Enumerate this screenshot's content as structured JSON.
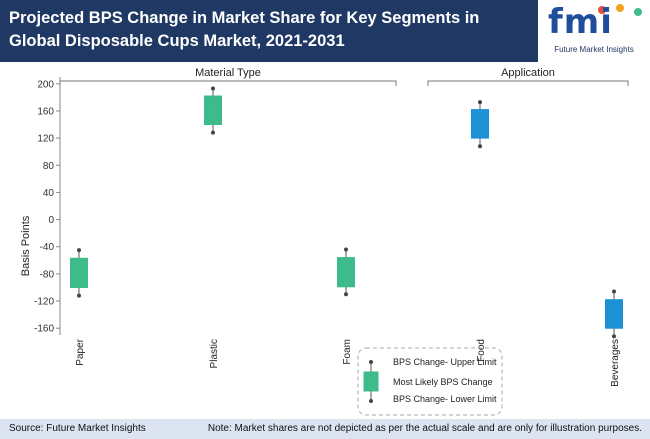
{
  "header": {
    "title": "Projected BPS Change in Market Share for Key Segments in Global Disposable Cups Market, 2021-2031",
    "logo": {
      "mark": "fmi",
      "subtitle": "Future Market Insights"
    }
  },
  "footer": {
    "source": "Source: Future Market Insights",
    "note": "Note: Market shares are not depicted as per the actual scale and are only for illustration purposes."
  },
  "colors": {
    "header_bg": "#1f3864",
    "material": "#3dbb8a",
    "application": "#1e90d6",
    "footer_bg": "#dbe4f0"
  },
  "chart_data": {
    "type": "box",
    "ylabel": "Basis Points",
    "ylim": [
      -170,
      210
    ],
    "yticks": [
      -160,
      -120,
      -80,
      -40,
      0,
      40,
      80,
      120,
      160,
      200
    ],
    "grid": false,
    "groups": [
      {
        "label": "Material Type",
        "categories": [
          "Paper",
          "Plastic",
          "Foam"
        ]
      },
      {
        "label": "Application",
        "categories": [
          "Food",
          "Beverages"
        ]
      }
    ],
    "categories": [
      "Paper",
      "Plastic",
      "Foam",
      "Food",
      "Beverages"
    ],
    "series": [
      {
        "category": "Paper",
        "group": "Material Type",
        "upper": -45,
        "box_high": -57,
        "box_low": -100,
        "lower": -112
      },
      {
        "category": "Plastic",
        "group": "Material Type",
        "upper": 193,
        "box_high": 182,
        "box_low": 140,
        "lower": 128
      },
      {
        "category": "Foam",
        "group": "Material Type",
        "upper": -44,
        "box_high": -56,
        "box_low": -99,
        "lower": -110
      },
      {
        "category": "Food",
        "group": "Application",
        "upper": 173,
        "box_high": 162,
        "box_low": 120,
        "lower": 108
      },
      {
        "category": "Beverages",
        "group": "Application",
        "upper": -106,
        "box_high": -118,
        "box_low": -160,
        "lower": -172
      }
    ],
    "legend": {
      "position": "bottom-right",
      "items": [
        "BPS Change- Upper Limit",
        "Most Likely BPS Change",
        "BPS Change- Lower Limit"
      ]
    }
  }
}
